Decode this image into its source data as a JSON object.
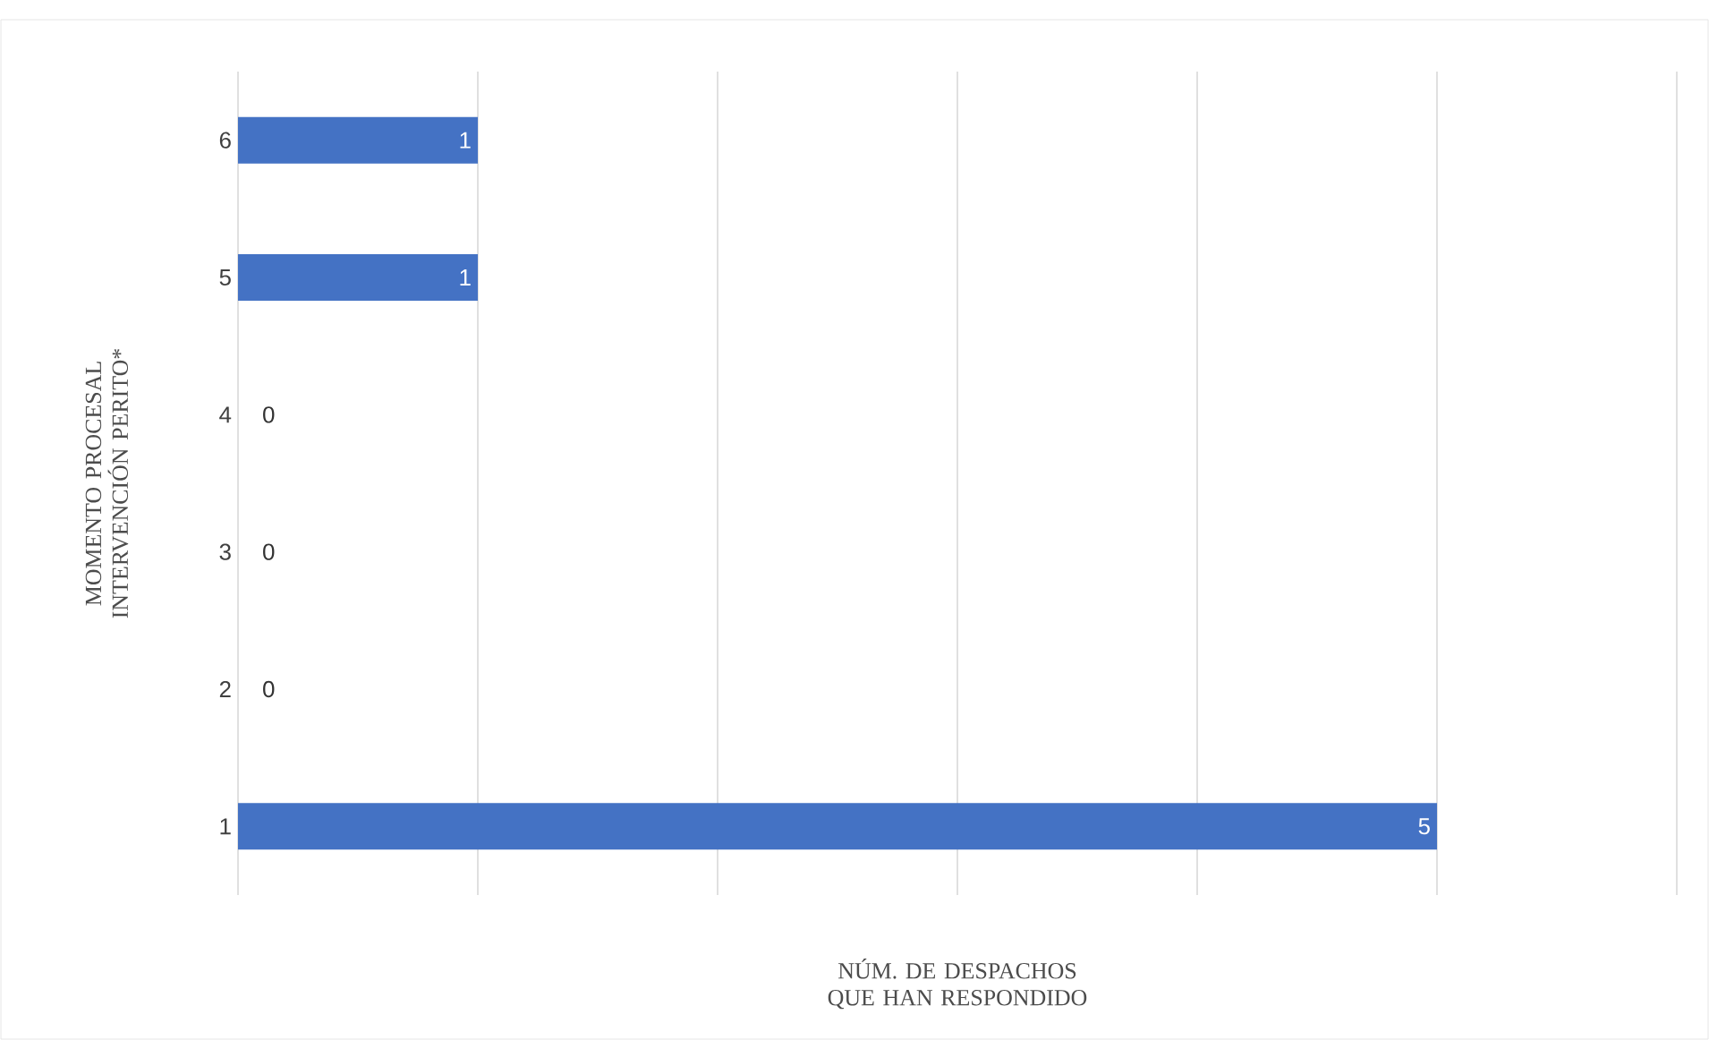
{
  "chart_data": {
    "type": "bar",
    "orientation": "horizontal",
    "xlabel": "NÚM. DE DESPACHOS QUE HAN RESPONDIDO",
    "ylabel": "MOMENTO PROCESAL INTERVENCIÓN PERITO*",
    "categories": [
      "6",
      "5",
      "4",
      "3",
      "2",
      "1"
    ],
    "values": [
      1,
      1,
      0,
      0,
      0,
      5
    ],
    "color": "#4472c4",
    "xlim": [
      0,
      6
    ],
    "xticks": [
      {
        "value": 0,
        "label": null
      },
      {
        "value": 1,
        "label": null
      },
      {
        "value": 2,
        "label": null
      },
      {
        "value": 3,
        "label": null
      },
      {
        "value": 4,
        "label": null
      },
      {
        "value": 5,
        "label": null
      },
      {
        "value": 6,
        "label": null
      }
    ],
    "tick_labels": "y",
    "grid": "x",
    "data_labels": true
  }
}
